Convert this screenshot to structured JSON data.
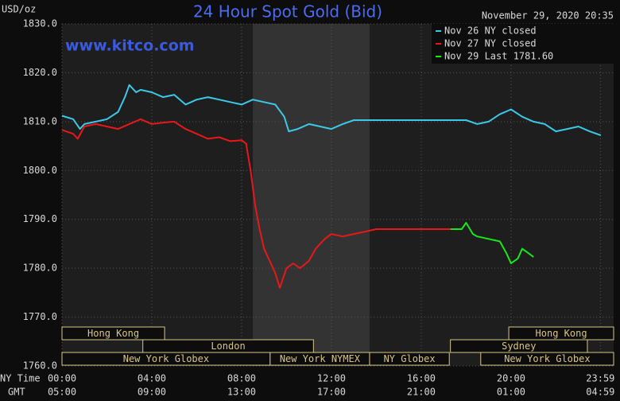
{
  "chart_data": {
    "type": "line",
    "title": "24 Hour Spot Gold (Bid)",
    "y_unit": "USD/oz",
    "timestamp": "November 29, 2020 20:35",
    "watermark": "www.kitco.com",
    "x_label": "NY Time",
    "x2_label": "GMT",
    "xlim": [
      0,
      24.57
    ],
    "ylim": [
      1760,
      1830
    ],
    "xticks": [
      {
        "value": 0,
        "label": "00:00"
      },
      {
        "value": 4,
        "label": "04:00"
      },
      {
        "value": 8,
        "label": "08:00"
      },
      {
        "value": 12,
        "label": "12:00"
      },
      {
        "value": 16,
        "label": "16:00"
      },
      {
        "value": 20,
        "label": "20:00"
      },
      {
        "value": 23.98,
        "label": "23:59"
      }
    ],
    "x2_labels": [
      "05:00",
      "09:00",
      "13:00",
      "17:00",
      "21:00",
      "01:00",
      "04:59"
    ],
    "yticks": [
      {
        "value": 1760,
        "label": "1760.0"
      },
      {
        "value": 1770,
        "label": "1770.0"
      },
      {
        "value": 1780,
        "label": "1780.0"
      },
      {
        "value": 1790,
        "label": "1790.0"
      },
      {
        "value": 1800,
        "label": "1800.0"
      },
      {
        "value": 1810,
        "label": "1810.0"
      },
      {
        "value": 1820,
        "label": "1820.0"
      },
      {
        "value": 1830,
        "label": "1830.0"
      }
    ],
    "grid": true,
    "legend": "top-right",
    "highlight": [
      8.5,
      13.7
    ],
    "sessions": [
      {
        "name": "Hong Kong",
        "start": 0,
        "end": 4.57,
        "row": 0
      },
      {
        "name": "London",
        "start": 3.6,
        "end": 11.2,
        "row": 1
      },
      {
        "name": "New York Globex",
        "start": 0,
        "end": 9.27,
        "row": 2
      },
      {
        "name": "New York NYMEX",
        "start": 9.27,
        "end": 13.7,
        "row": 2
      },
      {
        "name": "NY Globex",
        "start": 13.7,
        "end": 17.25,
        "row": 2
      },
      {
        "name": "Hong Kong",
        "start": 19.9,
        "end": 24.57,
        "row": 0
      },
      {
        "name": "Sydney",
        "start": 17.3,
        "end": 23.4,
        "row": 1
      },
      {
        "name": "New York Globex",
        "start": 18.65,
        "end": 24.57,
        "row": 2
      }
    ],
    "series": [
      {
        "name": "Nov 26 NY closed",
        "color": "#3cc8e8",
        "x": [
          0,
          0.5,
          0.8,
          1.0,
          1.5,
          2.0,
          2.5,
          2.8,
          3.0,
          3.3,
          3.5,
          4.0,
          4.5,
          5.0,
          5.5,
          6.0,
          6.5,
          7.0,
          7.5,
          8.0,
          8.5,
          9.0,
          9.5,
          9.9,
          10.1,
          10.5,
          11.0,
          11.5,
          12.0,
          12.5,
          13.0,
          14.0,
          15.0,
          16.0,
          17.0,
          18.0,
          18.5,
          19.0,
          19.5,
          20.0,
          20.5,
          21.0,
          21.5,
          22.0,
          22.5,
          23.0,
          23.5,
          24.0
        ],
        "values": [
          1811.2,
          1810.5,
          1808.5,
          1809.5,
          1810.0,
          1810.5,
          1812.0,
          1815.0,
          1817.5,
          1816.0,
          1816.5,
          1816.0,
          1815.0,
          1815.5,
          1813.5,
          1814.5,
          1815.0,
          1814.5,
          1814.0,
          1813.5,
          1814.5,
          1814.0,
          1813.5,
          1811.0,
          1808.0,
          1808.5,
          1809.5,
          1809.0,
          1808.5,
          1809.5,
          1810.3,
          1810.3,
          1810.3,
          1810.3,
          1810.3,
          1810.3,
          1809.5,
          1810.0,
          1811.5,
          1812.5,
          1811.0,
          1810.0,
          1809.5,
          1808.0,
          1808.5,
          1809.0,
          1808.0,
          1807.2
        ]
      },
      {
        "name": "Nov 27 NY closed",
        "color": "#e81818",
        "x": [
          0,
          0.5,
          0.7,
          1.0,
          1.5,
          2.0,
          2.5,
          3.0,
          3.5,
          4.0,
          4.5,
          5.0,
          5.5,
          6.0,
          6.5,
          7.0,
          7.5,
          8.0,
          8.2,
          8.4,
          8.6,
          8.8,
          9.0,
          9.3,
          9.5,
          9.7,
          10.0,
          10.3,
          10.6,
          11.0,
          11.3,
          11.7,
          12.0,
          12.5,
          13.0,
          13.5,
          14.0,
          15.0,
          16.0,
          17.3
        ],
        "values": [
          1808.3,
          1807.5,
          1806.5,
          1809.0,
          1809.5,
          1809.0,
          1808.5,
          1809.5,
          1810.5,
          1809.5,
          1809.8,
          1810.0,
          1808.5,
          1807.5,
          1806.5,
          1806.8,
          1806.0,
          1806.2,
          1805.5,
          1800.0,
          1793.0,
          1788.0,
          1784.0,
          1781.0,
          1779.0,
          1776.0,
          1780.0,
          1781.0,
          1780.0,
          1781.5,
          1784.0,
          1786.0,
          1787.0,
          1786.5,
          1787.0,
          1787.5,
          1788.0,
          1788.0,
          1788.0,
          1788.0
        ]
      },
      {
        "name": "Nov 29 Last 1781.60",
        "color": "#18e818",
        "x": [
          17.3,
          17.8,
          18.0,
          18.3,
          18.5,
          19.0,
          19.5,
          19.8,
          20.0,
          20.3,
          20.5,
          20.8,
          21.0
        ],
        "values": [
          1788.0,
          1788.0,
          1789.3,
          1787.0,
          1786.5,
          1786.0,
          1785.5,
          1783.0,
          1781.0,
          1782.0,
          1784.0,
          1783.0,
          1782.3
        ]
      }
    ]
  }
}
